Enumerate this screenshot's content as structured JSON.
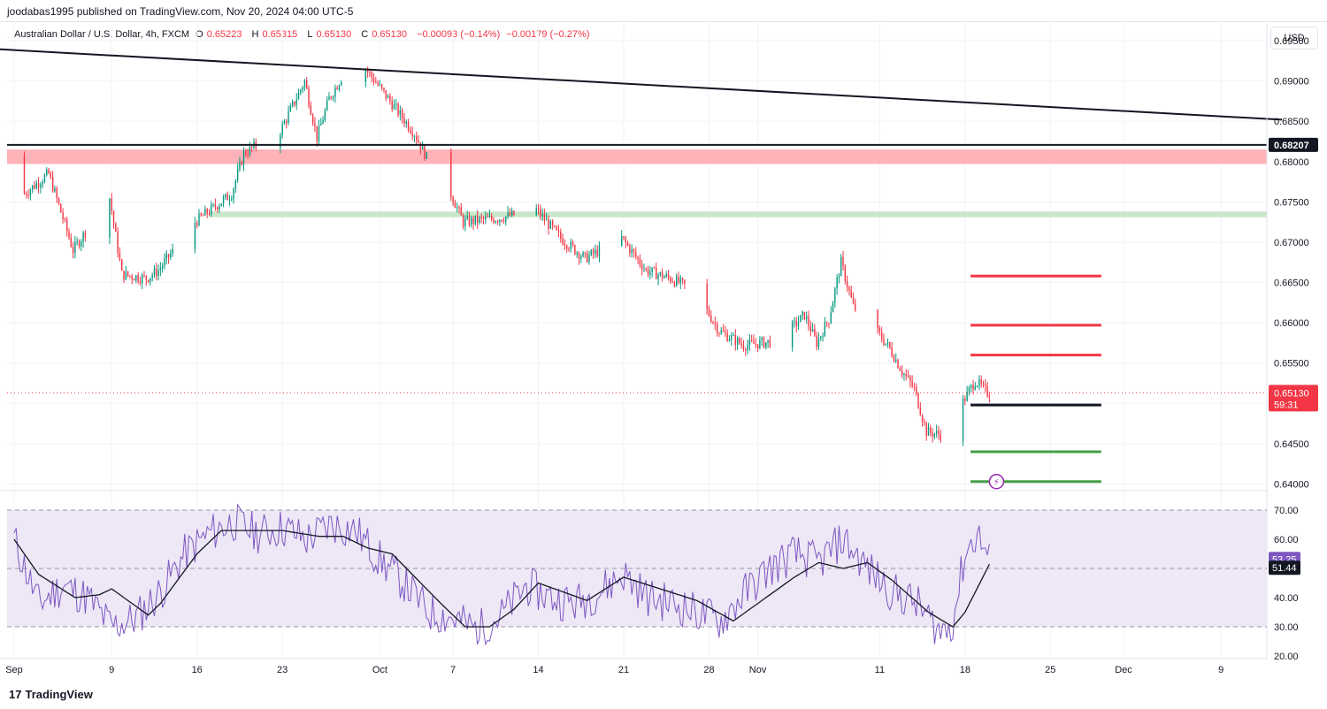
{
  "header": {
    "publisher": "joodabas1995 published on TradingView.com, Nov 20, 2024 04:00 UTC-5"
  },
  "symbol": {
    "name": "Australian Dollar / U.S. Dollar, 4h, FXCM",
    "o_label": "O",
    "o_value": "0.65223",
    "h_label": "H",
    "h_value": "0.65315",
    "l_label": "L",
    "l_value": "0.65130",
    "c_label": "C",
    "c_value": "0.65130",
    "change": "−0.00093 (−0.14%)",
    "change2": "−0.00179 (−0.27%)"
  },
  "currency_button": "USD",
  "footer": {
    "logo_text": "TradingView",
    "logo_mark": "17"
  },
  "colors": {
    "up": "#089981",
    "down": "#f23645",
    "resistance_zone": "#ffb3b8",
    "support_zone": "#c8e6c9",
    "rsi_line": "#7e57c2",
    "rsi_ma": "#131722",
    "rsi_band": "#ede7f6"
  },
  "chart_data": [
    {
      "type": "candlestick",
      "title": "Australian Dollar / U.S. Dollar, 4h, FXCM",
      "ylim": [
        0.6395,
        0.6972
      ],
      "price_ticks": [
        "0.69500",
        "0.69000",
        "0.68500",
        "0.68207",
        "0.68000",
        "0.67500",
        "0.67000",
        "0.66500",
        "0.66000",
        "0.65500",
        "0.65130",
        "0.65000",
        "0.64500",
        "0.64000"
      ],
      "x_ticks": [
        "Sep",
        "9",
        "16",
        "23",
        "Oct",
        "7",
        "14",
        "21",
        "28",
        "Nov",
        "11",
        "18",
        "25",
        "Dec",
        "9"
      ],
      "current_price": {
        "value": 0.6513,
        "label": "0.65130",
        "countdown": "59:31"
      },
      "marked_level": {
        "value": 0.68207,
        "label": "0.68207"
      },
      "anchors": [
        {
          "x": "Sep 1",
          "price": 0.6808
        },
        {
          "x": "Sep 2",
          "price": 0.676
        },
        {
          "x": "Sep 4",
          "price": 0.6785
        },
        {
          "x": "Sep 6",
          "price": 0.669
        },
        {
          "x": "Sep 8",
          "price": 0.6735
        },
        {
          "x": "Sep 9",
          "price": 0.6755
        },
        {
          "x": "Sep 10",
          "price": 0.666
        },
        {
          "x": "Sep 12",
          "price": 0.6655
        },
        {
          "x": "Sep 13",
          "price": 0.6665
        },
        {
          "x": "Sep 16",
          "price": 0.6725
        },
        {
          "x": "Sep 19",
          "price": 0.676
        },
        {
          "x": "Sep 20",
          "price": 0.681
        },
        {
          "x": "Sep 23",
          "price": 0.6838
        },
        {
          "x": "Sep 25",
          "price": 0.69
        },
        {
          "x": "Sep 26",
          "price": 0.683
        },
        {
          "x": "Sep 27",
          "price": 0.6878
        },
        {
          "x": "Sep 29",
          "price": 0.693
        },
        {
          "x": "Sep 30",
          "price": 0.6915
        },
        {
          "x": "Oct 1",
          "price": 0.6895
        },
        {
          "x": "Oct 2",
          "price": 0.6875
        },
        {
          "x": "Oct 4",
          "price": 0.6835
        },
        {
          "x": "Oct 5",
          "price": 0.6805
        },
        {
          "x": "Oct 7",
          "price": 0.676
        },
        {
          "x": "Oct 8",
          "price": 0.6725
        },
        {
          "x": "Oct 11",
          "price": 0.673
        },
        {
          "x": "Oct 14",
          "price": 0.674
        },
        {
          "x": "Oct 16",
          "price": 0.6705
        },
        {
          "x": "Oct 18",
          "price": 0.668
        },
        {
          "x": "Oct 21",
          "price": 0.6705
        },
        {
          "x": "Oct 23",
          "price": 0.6665
        },
        {
          "x": "Oct 25",
          "price": 0.6655
        },
        {
          "x": "Oct 27",
          "price": 0.664
        },
        {
          "x": "Oct 29",
          "price": 0.659
        },
        {
          "x": "Oct 31",
          "price": 0.6572
        },
        {
          "x": "Nov 3",
          "price": 0.6578
        },
        {
          "x": "Nov 5",
          "price": 0.661
        },
        {
          "x": "Nov 6",
          "price": 0.6575
        },
        {
          "x": "Nov 7",
          "price": 0.6605
        },
        {
          "x": "Nov 8",
          "price": 0.6675
        },
        {
          "x": "Nov 9",
          "price": 0.662
        },
        {
          "x": "Nov 11",
          "price": 0.6588
        },
        {
          "x": "Nov 12",
          "price": 0.6568
        },
        {
          "x": "Nov 13",
          "price": 0.654
        },
        {
          "x": "Nov 14",
          "price": 0.6518
        },
        {
          "x": "Nov 15",
          "price": 0.6465
        },
        {
          "x": "Nov 17",
          "price": 0.6458
        },
        {
          "x": "Nov 18",
          "price": 0.6502
        },
        {
          "x": "Nov 19",
          "price": 0.6528
        },
        {
          "x": "Nov 20",
          "price": 0.6513
        }
      ],
      "drawings": {
        "trendline": {
          "from": {
            "x": "Aug 30",
            "price": 0.694
          },
          "to": {
            "x": "Dec 14",
            "price": 0.6852
          }
        },
        "horizontal_line": {
          "price": 0.68207
        },
        "resistance_zone": [
          0.6797,
          0.6815
        ],
        "support_zone": [
          0.6731,
          0.6738
        ],
        "horizontal_ray_start": "Sep 17",
        "levels": [
          {
            "price": 0.6658,
            "color": "#f23645"
          },
          {
            "price": 0.6597,
            "color": "#f23645"
          },
          {
            "price": 0.656,
            "color": "#f23645"
          },
          {
            "price": 0.6498,
            "color": "#131722"
          },
          {
            "price": 0.644,
            "color": "#43a047"
          },
          {
            "price": 0.6403,
            "color": "#43a047"
          }
        ],
        "levels_span": {
          "from": "Nov 17",
          "to": "Nov 27"
        }
      }
    },
    {
      "type": "line",
      "title": "RSI",
      "ylim": [
        20,
        70
      ],
      "y_ticks": [
        "70.00",
        "60.00",
        "50.00",
        "40.00",
        "30.00",
        "20.00"
      ],
      "band": [
        30,
        70
      ],
      "midline": 50,
      "series": [
        {
          "role": "rsi",
          "last": 53.25,
          "label": "53.25",
          "anchors": [
            {
              "x": "Sep 1",
              "value": 60
            },
            {
              "x": "Sep 3",
              "value": 38
            },
            {
              "x": "Sep 5",
              "value": 44
            },
            {
              "x": "Sep 7",
              "value": 40
            },
            {
              "x": "Sep 9",
              "value": 30
            },
            {
              "x": "Sep 11",
              "value": 33
            },
            {
              "x": "Sep 13",
              "value": 42
            },
            {
              "x": "Sep 15",
              "value": 55
            },
            {
              "x": "Sep 17",
              "value": 62
            },
            {
              "x": "Sep 19",
              "value": 66
            },
            {
              "x": "Sep 21",
              "value": 62
            },
            {
              "x": "Sep 23",
              "value": 64
            },
            {
              "x": "Sep 25",
              "value": 60
            },
            {
              "x": "Sep 27",
              "value": 65
            },
            {
              "x": "Sep 29",
              "value": 63
            },
            {
              "x": "Oct 1",
              "value": 53
            },
            {
              "x": "Oct 3",
              "value": 45
            },
            {
              "x": "Oct 5",
              "value": 35
            },
            {
              "x": "Oct 7",
              "value": 33
            },
            {
              "x": "Oct 9",
              "value": 29
            },
            {
              "x": "Oct 11",
              "value": 34
            },
            {
              "x": "Oct 13",
              "value": 44
            },
            {
              "x": "Oct 15",
              "value": 40
            },
            {
              "x": "Oct 17",
              "value": 38
            },
            {
              "x": "Oct 19",
              "value": 42
            },
            {
              "x": "Oct 21",
              "value": 48
            },
            {
              "x": "Oct 23",
              "value": 40
            },
            {
              "x": "Oct 25",
              "value": 38
            },
            {
              "x": "Oct 27",
              "value": 35
            },
            {
              "x": "Oct 29",
              "value": 32
            },
            {
              "x": "Oct 31",
              "value": 42
            },
            {
              "x": "Nov 2",
              "value": 50
            },
            {
              "x": "Nov 4",
              "value": 55
            },
            {
              "x": "Nov 6",
              "value": 52
            },
            {
              "x": "Nov 8",
              "value": 60
            },
            {
              "x": "Nov 10",
              "value": 50
            },
            {
              "x": "Nov 12",
              "value": 42
            },
            {
              "x": "Nov 14",
              "value": 38
            },
            {
              "x": "Nov 16",
              "value": 28
            },
            {
              "x": "Nov 17",
              "value": 32
            },
            {
              "x": "Nov 18",
              "value": 55
            },
            {
              "x": "Nov 19",
              "value": 62
            },
            {
              "x": "Nov 20",
              "value": 53.25
            }
          ]
        },
        {
          "role": "rsi_ma",
          "last": 51.44,
          "label": "51.44",
          "anchors": [
            {
              "x": "Sep 1",
              "value": 60
            },
            {
              "x": "Sep 3",
              "value": 48
            },
            {
              "x": "Sep 6",
              "value": 40
            },
            {
              "x": "Sep 8",
              "value": 41
            },
            {
              "x": "Sep 9",
              "value": 43
            },
            {
              "x": "Sep 12",
              "value": 34
            },
            {
              "x": "Sep 13",
              "value": 38
            },
            {
              "x": "Sep 16",
              "value": 55
            },
            {
              "x": "Sep 18",
              "value": 63
            },
            {
              "x": "Sep 20",
              "value": 63
            },
            {
              "x": "Sep 23",
              "value": 63
            },
            {
              "x": "Sep 26",
              "value": 61
            },
            {
              "x": "Sep 28",
              "value": 61
            },
            {
              "x": "Sep 30",
              "value": 57
            },
            {
              "x": "Oct 2",
              "value": 55
            },
            {
              "x": "Oct 6",
              "value": 38
            },
            {
              "x": "Oct 8",
              "value": 30
            },
            {
              "x": "Oct 10",
              "value": 30
            },
            {
              "x": "Oct 12",
              "value": 36
            },
            {
              "x": "Oct 14",
              "value": 45
            },
            {
              "x": "Oct 16",
              "value": 42
            },
            {
              "x": "Oct 18",
              "value": 39
            },
            {
              "x": "Oct 21",
              "value": 47
            },
            {
              "x": "Oct 24",
              "value": 43
            },
            {
              "x": "Oct 27",
              "value": 39
            },
            {
              "x": "Oct 30",
              "value": 32
            },
            {
              "x": "Nov 1",
              "value": 38
            },
            {
              "x": "Nov 4",
              "value": 47
            },
            {
              "x": "Nov 6",
              "value": 52
            },
            {
              "x": "Nov 8",
              "value": 50
            },
            {
              "x": "Nov 10",
              "value": 52
            },
            {
              "x": "Nov 12",
              "value": 46
            },
            {
              "x": "Nov 15",
              "value": 35
            },
            {
              "x": "Nov 17",
              "value": 30
            },
            {
              "x": "Nov 18",
              "value": 35
            },
            {
              "x": "Nov 20",
              "value": 51.44
            }
          ]
        }
      ]
    }
  ]
}
